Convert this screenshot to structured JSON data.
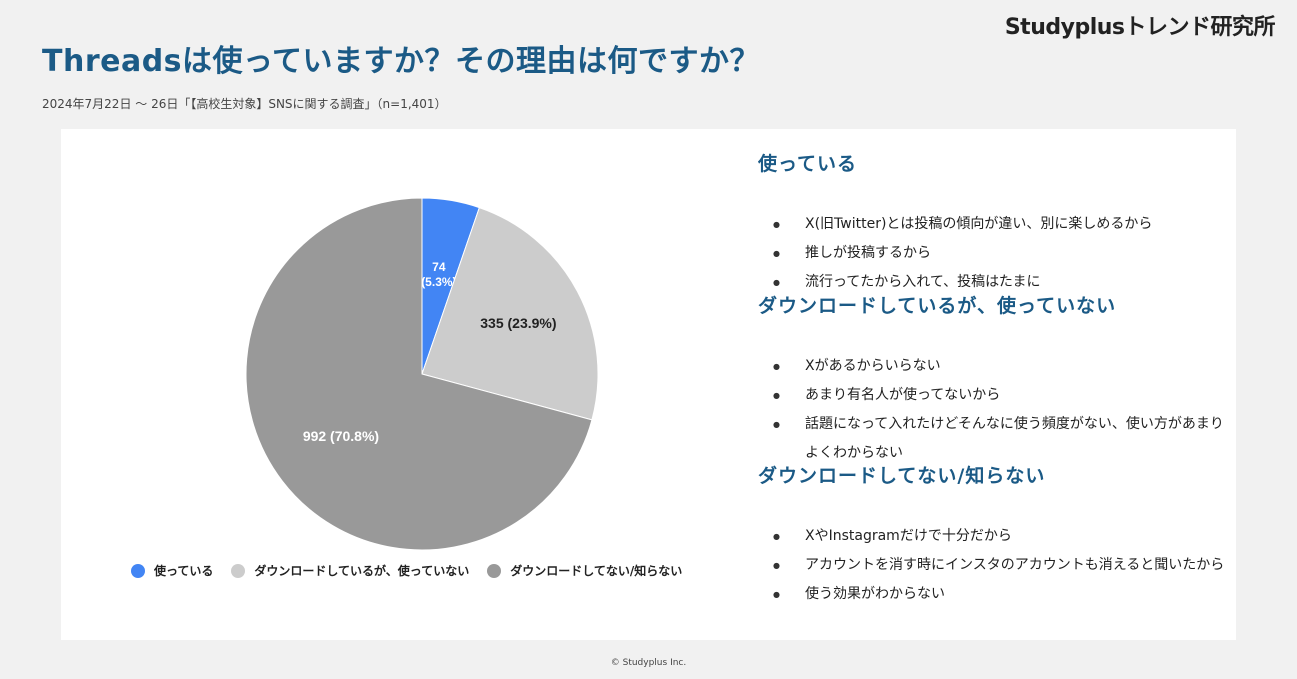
{
  "brand": "Studyplusトレンド研究所",
  "title": "Threadsは使っていますか？その理由は何ですか？",
  "subtitle": "2024年7月22日 〜 26日「【高校生対象】SNSに関する調査」（n=1,401）",
  "footer": "© Studyplus Inc.",
  "chart_data": {
    "type": "pie",
    "title": "",
    "n": 1401,
    "slices": [
      {
        "name": "使っている",
        "value": 74,
        "percent": 5.3,
        "label": [
          "74",
          "(5.3%)"
        ],
        "color": "#4285f4",
        "label_color": "#ffffff"
      },
      {
        "name": "ダウンロードしているが、使っていない",
        "value": 335,
        "percent": 23.9,
        "label": [
          "335 (23.9%)"
        ],
        "color": "#cccccc",
        "label_color": "#222222"
      },
      {
        "name": "ダウンロードしてない/知らない",
        "value": 992,
        "percent": 70.8,
        "label": [
          "992 (70.8%)"
        ],
        "color": "#999999",
        "label_color": "#ffffff"
      }
    ],
    "legend_position": "bottom"
  },
  "legend": [
    {
      "label": "使っている",
      "color": "#4285f4"
    },
    {
      "label": "ダウンロードしているが、使っていない",
      "color": "#cccccc"
    },
    {
      "label": "ダウンロードしてない/知らない",
      "color": "#999999"
    }
  ],
  "reasons": [
    {
      "heading": "使っている",
      "items": [
        "X(旧Twitter)とは投稿の傾向が違い、別に楽しめるから",
        "推しが投稿するから",
        "流行ってたから入れて、投稿はたまに"
      ]
    },
    {
      "heading": "ダウンロードしているが、使っていない",
      "items": [
        "Xがあるからいらない",
        "あまり有名人が使ってないから",
        "話題になって入れたけどそんなに使う頻度がない、使い方があまりよくわからない"
      ]
    },
    {
      "heading": "ダウンロードしてない/知らない",
      "items": [
        "XやInstagramだけで十分だから",
        "アカウントを消す時にインスタのアカウントも消えると聞いたから",
        "使う効果がわからない"
      ]
    }
  ]
}
